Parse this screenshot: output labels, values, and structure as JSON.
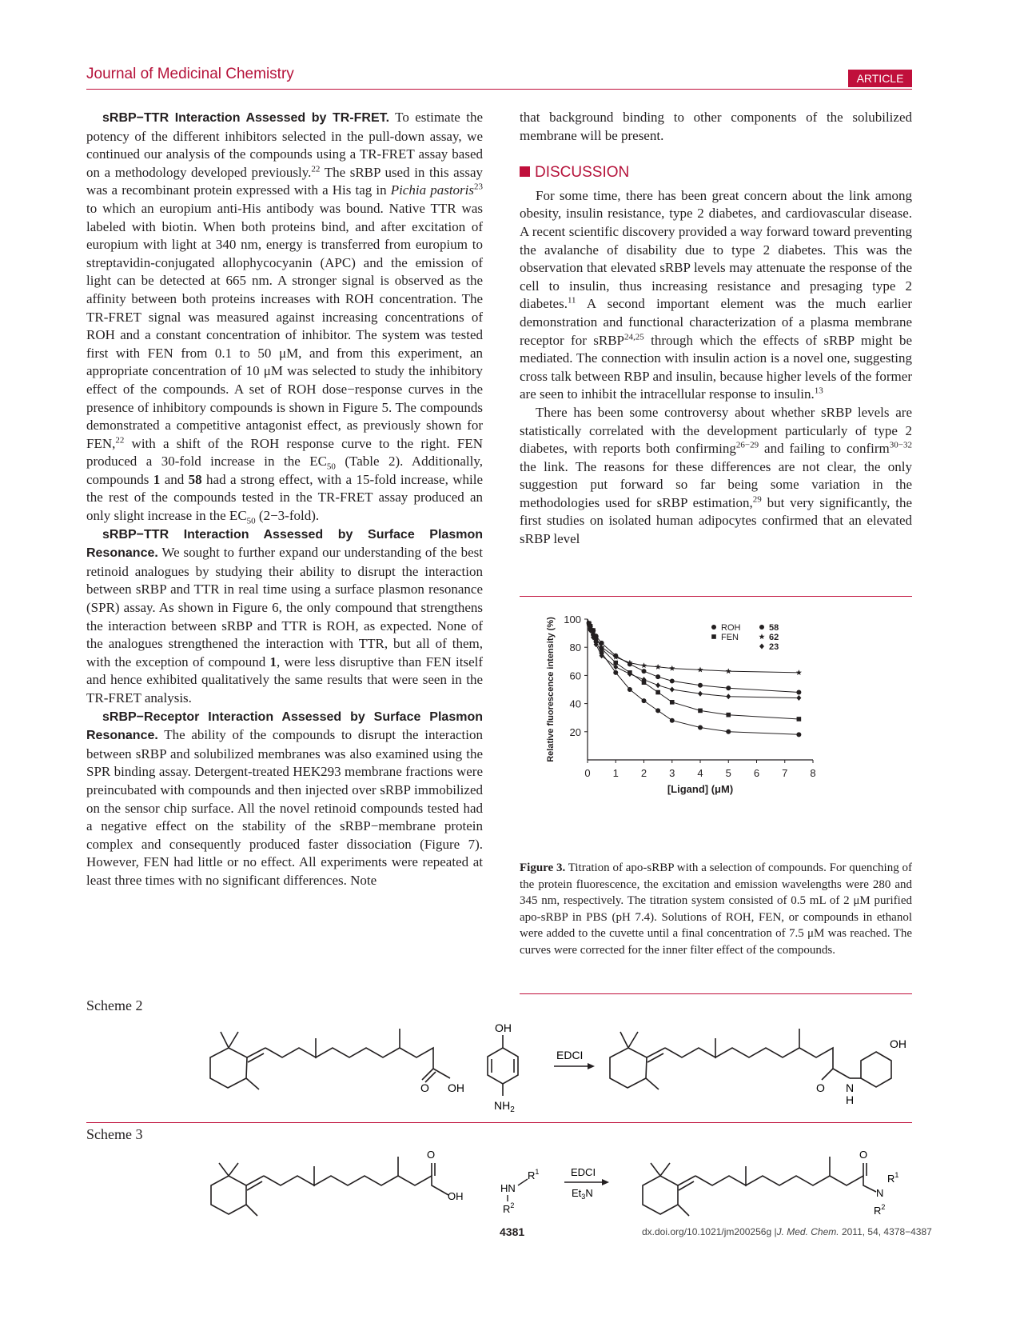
{
  "header": {
    "journal": "Journal of Medicinal Chemistry",
    "badge": "ARTICLE"
  },
  "left_column": {
    "p1_head": "sRBP−TTR Interaction Assessed by TR-FRET.",
    "p1_a": " To estimate the potency of the different inhibitors selected in the pull-down assay, we continued our analysis of the compounds using a TR-FRET assay based on a methodology developed previously.",
    "p1_ref1": "22",
    "p1_b": " The sRBP used in this assay was a recombinant protein expressed with a His tag in ",
    "p1_italic": "Pichia pastoris",
    "p1_ref2": "23",
    "p1_c": " to which an europium anti-His antibody was bound. Native TTR was labeled with biotin. When both proteins bind, and after excitation of europium with light at 340 nm, energy is transferred from europium to streptavidin-conjugated allophycocyanin (APC) and the emission of light can be detected at 665 nm. A stronger signal is observed as the affinity between both proteins increases with ROH concentration. The TR-FRET signal was measured against increasing concentrations of ROH and a constant concentration of inhibitor. The system was tested first with FEN from 0.1 to 50 μM, and from this experiment, an appropriate concentration of 10 μM was selected to study the inhibitory effect of the compounds. A set of ROH dose−response curves in the presence of inhibitory compounds is shown in Figure 5. The compounds demonstrated a competitive antagonist effect, as previously shown for FEN,",
    "p1_ref3": "22",
    "p1_d": " with a shift of the ROH response curve to the right. FEN produced a 30-fold increase in the EC",
    "p1_sub1": "50",
    "p1_e": " (Table 2). Additionally, compounds ",
    "p1_bold1": "1",
    "p1_f": " and ",
    "p1_bold2": "58",
    "p1_g": " had a strong effect, with a 15-fold increase, while the rest of the compounds tested in the TR-FRET assay produced an only slight increase in the EC",
    "p1_sub2": "50",
    "p1_h": " (2−3-fold).",
    "p2_head": "sRBP−TTR Interaction Assessed by Surface Plasmon Resonance.",
    "p2_a": " We sought to further expand our understanding of the best retinoid analogues by studying their ability to disrupt the interaction between sRBP and TTR in real time using a surface plasmon resonance (SPR) assay. As shown in Figure 6, the only compound that strengthens the interaction between sRBP and TTR is ROH, as expected. None of the analogues strengthened the interaction with TTR, but all of them, with the exception of compound ",
    "p2_bold": "1",
    "p2_b": ", were less disruptive than FEN itself and hence exhibited qualitatively the same results that were seen in the TR-FRET analysis.",
    "p3_head": "sRBP−Receptor Interaction Assessed by Surface Plasmon Resonance.",
    "p3_a": " The ability of the compounds to disrupt the interaction between sRBP and solubilized membranes was also examined using the SPR binding assay. Detergent-treated HEK293 membrane fractions were preincubated with compounds and then injected over sRBP immobilized on the sensor chip surface. All the novel retinoid compounds tested had a negative effect on the stability of the sRBP−membrane protein complex and consequently produced faster dissociation (Figure 7). However, FEN had little or no effect. All experiments were repeated at least three times with no significant differences. Note"
  },
  "right_column": {
    "p0": "that background binding to other components of the solubilized membrane will be present.",
    "discussion_head": "DISCUSSION",
    "p1_a": "For some time, there has been great concern about the link among obesity, insulin resistance, type 2 diabetes, and cardiovascular disease. A recent scientific discovery provided a way forward toward preventing the avalanche of disability due to type 2 diabetes. This was the observation that elevated sRBP levels may attenuate the response of the cell to insulin, thus increasing resistance and presaging type 2 diabetes.",
    "p1_ref1": "11",
    "p1_b": " A second important element was the much earlier demonstration and functional characterization of a plasma membrane receptor for sRBP",
    "p1_ref2": "24,25",
    "p1_c": " through which the effects of sRBP might be mediated. The connection with insulin action is a novel one, suggesting cross talk between RBP and insulin, because higher levels of the former are seen to inhibit the intracellular response to insulin.",
    "p1_ref3": "13",
    "p2_a": "There has been some controversy about whether sRBP levels are statistically correlated with the development particularly of type 2 diabetes, with reports both confirming",
    "p2_ref1": "26−29",
    "p2_b": " and failing to confirm",
    "p2_ref2": "30−32",
    "p2_c": " the link. The reasons for these differences are not clear, the only suggestion put forward so far being some variation in the methodologies used for sRBP estimation,",
    "p2_ref3": "29",
    "p2_d": " but very significantly, the first studies on isolated human adipocytes confirmed that an elevated sRBP level"
  },
  "figure3": {
    "caption_label": "Figure 3.",
    "caption_text": " Titration of apo-sRBP with a selection of compounds. For quenching of the protein fluorescence, the excitation and emission wavelengths were 280 and 345 nm, respectively. The titration system consisted of 0.5 mL of 2 μM purified apo-sRBP in PBS (pH 7.4). Solutions of ROH, FEN, or compounds in ethanol were added to the cuvette until a final concentration of 7.5 μM was reached. The curves were corrected for the inner filter effect of the compounds."
  },
  "chart_data": {
    "type": "scatter",
    "xlabel": "[Ligand] (μM)",
    "ylabel": "Relative fluorescence intensity (%)",
    "xlim": [
      0,
      8
    ],
    "ylim": [
      0,
      100
    ],
    "x_ticks": [
      "0",
      "1",
      "2",
      "3",
      "4",
      "5",
      "6",
      "7",
      "8"
    ],
    "y_ticks": [
      "20",
      "40",
      "60",
      "80",
      "100"
    ],
    "legend_position": "top-right",
    "series": [
      {
        "name": "ROH",
        "marker": "circle",
        "x": [
          0,
          0.05,
          0.1,
          0.2,
          0.3,
          0.5,
          1,
          1.5,
          2,
          2.5,
          3,
          4,
          5,
          7.5
        ],
        "y": [
          100,
          97,
          93,
          89,
          84,
          76,
          62,
          50,
          42,
          35,
          28,
          23,
          20,
          18
        ]
      },
      {
        "name": "FEN",
        "marker": "square",
        "x": [
          0,
          0.05,
          0.1,
          0.2,
          0.3,
          0.5,
          1,
          1.5,
          2,
          2.5,
          3,
          4,
          5,
          7.5
        ],
        "y": [
          100,
          97,
          95,
          92,
          87,
          79,
          69,
          62,
          55,
          48,
          41,
          35,
          32,
          29
        ]
      },
      {
        "name": "58",
        "marker": "filled-circle",
        "x": [
          0,
          0.05,
          0.1,
          0.2,
          0.3,
          0.5,
          1,
          1.5,
          2,
          2.5,
          3,
          4,
          5,
          7.5
        ],
        "y": [
          100,
          97,
          95,
          92,
          88,
          83,
          74,
          68,
          63,
          59,
          56,
          53,
          51,
          48
        ]
      },
      {
        "name": "62",
        "marker": "star",
        "x": [
          0,
          0.05,
          0.1,
          0.2,
          0.3,
          0.5,
          1,
          1.5,
          2,
          2.5,
          3,
          4,
          5,
          7.5
        ],
        "y": [
          100,
          97,
          94,
          91,
          87,
          80,
          73,
          69,
          67,
          66,
          65,
          64,
          63,
          62
        ]
      },
      {
        "name": "23",
        "marker": "diamond",
        "x": [
          0,
          0.05,
          0.1,
          0.2,
          0.3,
          0.5,
          1,
          1.5,
          2,
          2.5,
          3,
          4,
          5,
          7.5
        ],
        "y": [
          100,
          96,
          92,
          87,
          82,
          74,
          66,
          61,
          57,
          53,
          50,
          47,
          45,
          44
        ]
      }
    ]
  },
  "scheme2": {
    "label": "Scheme 2",
    "oh_top": "OH",
    "nh2": "NH",
    "nh2_sub": "2",
    "oh_acid": "OH",
    "o_acid": "O",
    "reagent": "EDCI",
    "o_amide": "O",
    "n_amide": "N",
    "h_amide": "H",
    "oh_product": "OH"
  },
  "scheme3": {
    "label": "Scheme 3",
    "o_acid": "O",
    "oh_acid": "OH",
    "hn": "HN",
    "r1": "R",
    "r1_sup": "1",
    "r2": "R",
    "r2_sup": "2",
    "reagent1": "EDCI",
    "reagent2": "Et",
    "reagent2_sub": "3",
    "reagent2_end": "N",
    "o_amide": "O",
    "n_amide": "N",
    "r1p": "R",
    "r1p_sup": "1",
    "r2p": "R",
    "r2p_sup": "2"
  },
  "footer": {
    "page": "4381",
    "doi_a": "dx.doi.org/10.1021/jm200256g |",
    "doi_journal": "J. Med. Chem.",
    "doi_b": " 2011, 54, 4378−4387"
  }
}
